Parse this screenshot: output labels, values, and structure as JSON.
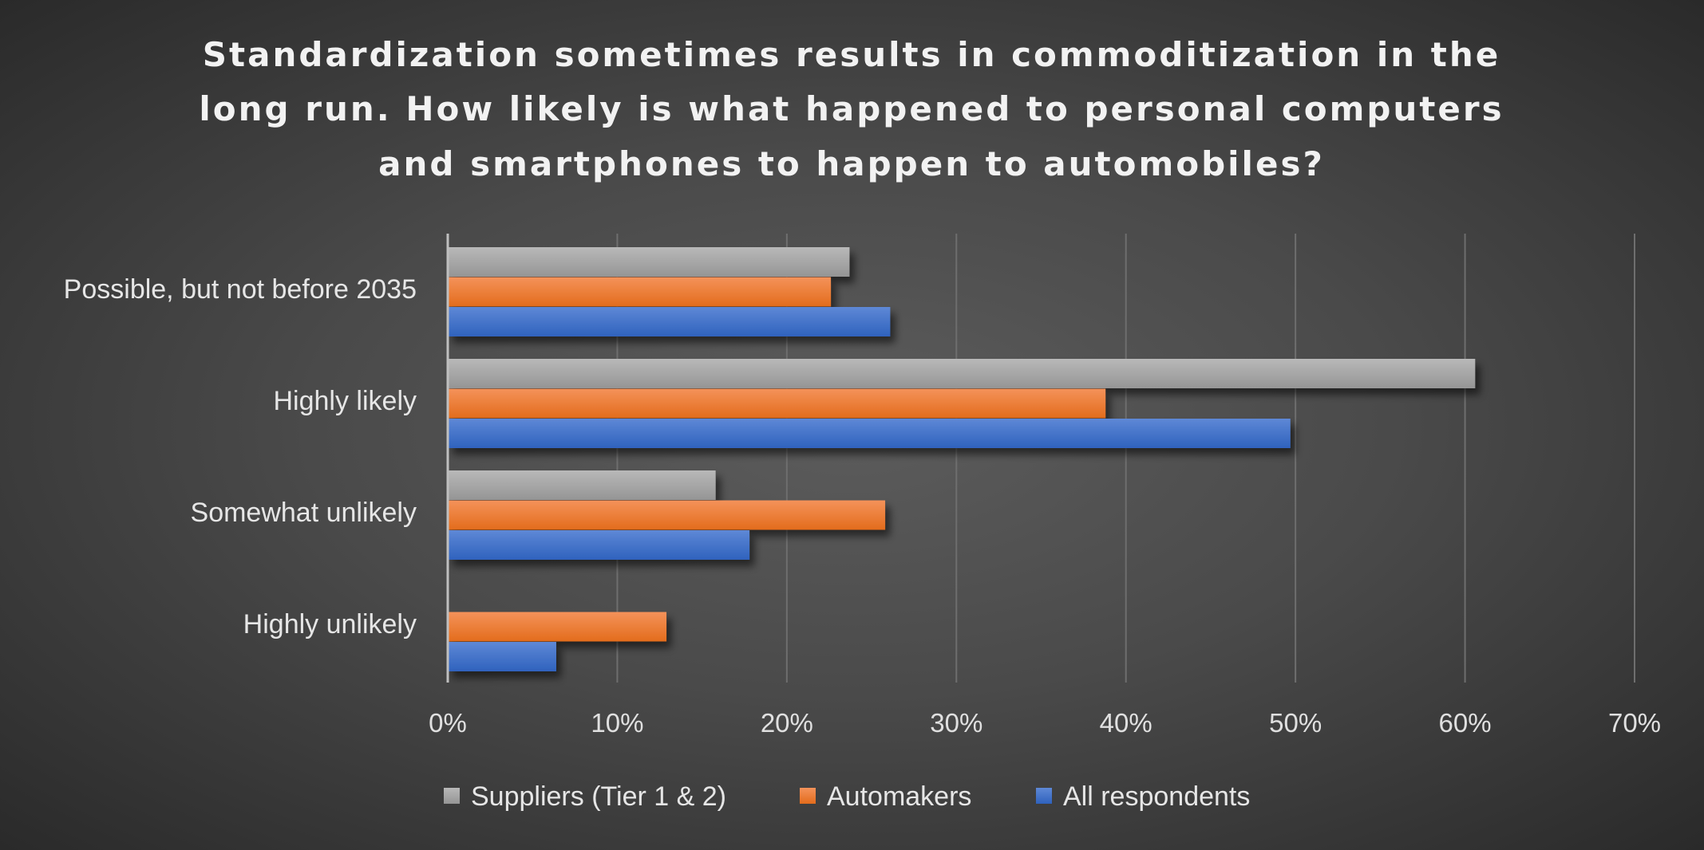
{
  "chart_data": {
    "type": "bar",
    "orientation": "horizontal",
    "title": "Standardization sometimes results in commoditization in the long run. How likely is what happened to personal computers and smartphones to happen to automobiles?",
    "title_lines": [
      "Standardization sometimes results in commoditization in the",
      "long run. How likely is what happened to personal computers",
      "and smartphones to happen to automobiles?"
    ],
    "categories": [
      "Possible, but not before 2035",
      "Highly likely",
      "Somewhat unlikely",
      "Highly unlikely"
    ],
    "series": [
      {
        "name": "Suppliers (Tier 1 & 2)",
        "color": "#a5a5a5",
        "values": [
          23.7,
          60.6,
          15.8,
          0
        ]
      },
      {
        "name": "Automakers",
        "color": "#ed7d31",
        "values": [
          22.6,
          38.8,
          25.8,
          12.9
        ]
      },
      {
        "name": "All respondents",
        "color": "#4472c4",
        "values": [
          26.1,
          49.7,
          17.8,
          6.4
        ]
      }
    ],
    "xlim": [
      0,
      70
    ],
    "x_ticks": [
      "0%",
      "10%",
      "20%",
      "30%",
      "40%",
      "50%",
      "60%",
      "70%"
    ],
    "xlabel": "",
    "ylabel": "",
    "grid": true,
    "legend_position": "bottom"
  }
}
